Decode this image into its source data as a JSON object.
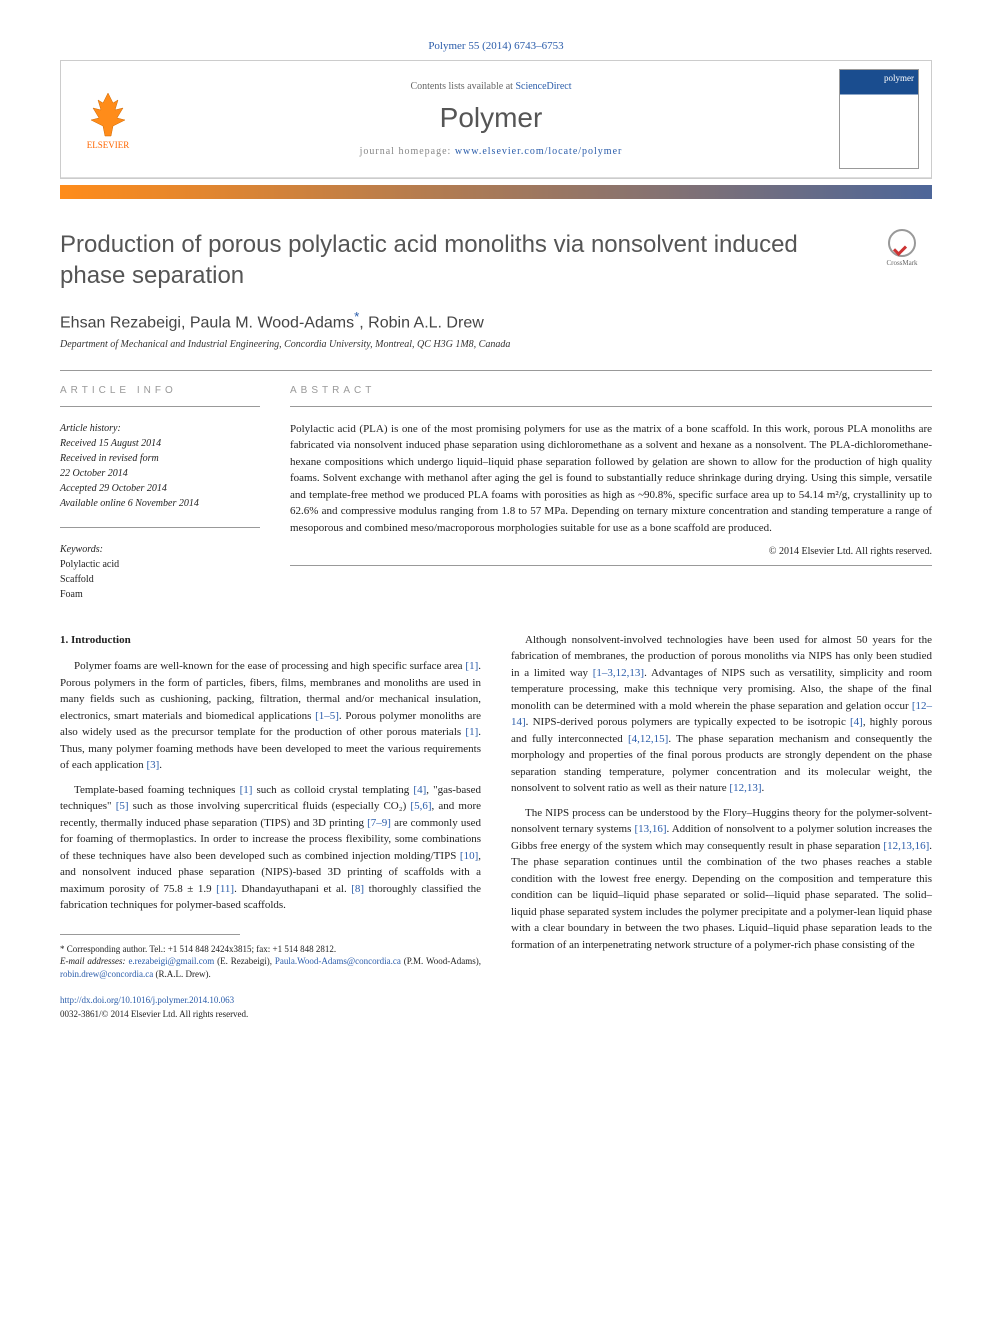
{
  "journal_ref": "Polymer 55 (2014) 6743–6753",
  "header": {
    "contents_prefix": "Contents lists available at ",
    "contents_link": "ScienceDirect",
    "journal_name": "Polymer",
    "homepage_prefix": "journal homepage: ",
    "homepage_url": "www.elsevier.com/locate/polymer",
    "publisher": "ELSEVIER",
    "cover_label": "polymer"
  },
  "crossmark_label": "CrossMark",
  "article": {
    "title": "Production of porous polylactic acid monoliths via nonsolvent induced phase separation",
    "authors_html": "Ehsan Rezabeigi, Paula M. Wood-Adams<sup class='corr'>*</sup>, Robin A.L. Drew",
    "affiliation": "Department of Mechanical and Industrial Engineering, Concordia University, Montreal, QC H3G 1M8, Canada"
  },
  "info": {
    "label": "ARTICLE INFO",
    "history_label": "Article history:",
    "history": [
      "Received 15 August 2014",
      "Received in revised form",
      "22 October 2014",
      "Accepted 29 October 2014",
      "Available online 6 November 2014"
    ],
    "keywords_label": "Keywords:",
    "keywords": [
      "Polylactic acid",
      "Scaffold",
      "Foam"
    ]
  },
  "abstract": {
    "label": "ABSTRACT",
    "text": "Polylactic acid (PLA) is one of the most promising polymers for use as the matrix of a bone scaffold. In this work, porous PLA monoliths are fabricated via nonsolvent induced phase separation using dichloromethane as a solvent and hexane as a nonsolvent. The PLA-dichloromethane-hexane compositions which undergo liquid–liquid phase separation followed by gelation are shown to allow for the production of high quality foams. Solvent exchange with methanol after aging the gel is found to substantially reduce shrinkage during drying. Using this simple, versatile and template-free method we produced PLA foams with porosities as high as ~90.8%, specific surface area up to 54.14 m²/g, crystallinity up to 62.6% and compressive modulus ranging from 1.8 to 57 MPa. Depending on ternary mixture concentration and standing temperature a range of mesoporous and combined meso/macroporous morphologies suitable for use as a bone scaffold are produced.",
    "copyright": "© 2014 Elsevier Ltd. All rights reserved."
  },
  "body": {
    "intro_heading": "1. Introduction",
    "left": [
      "Polymer foams are well-known for the ease of processing and high specific surface area [1]. Porous polymers in the form of particles, fibers, films, membranes and monoliths are used in many fields such as cushioning, packing, filtration, thermal and/or mechanical insulation, electronics, smart materials and biomedical applications [1–5]. Porous polymer monoliths are also widely used as the precursor template for the production of other porous materials [1]. Thus, many polymer foaming methods have been developed to meet the various requirements of each application [3].",
      "Template-based foaming techniques [1] such as colloid crystal templating [4], \"gas-based techniques\" [5] such as those involving supercritical fluids (especially CO₂) [5,6], and more recently, thermally induced phase separation (TIPS) and 3D printing [7–9] are commonly used for foaming of thermoplastics. In order to increase the process flexibility, some combinations of these techniques have also been developed such as combined injection molding/TIPS [10], and nonsolvent induced phase separation (NIPS)-based 3D printing of scaffolds with a maximum porosity of 75.8 ± 1.9 [11]. Dhandayuthapani et al. [8] thoroughly classified the fabrication techniques for polymer-based scaffolds."
    ],
    "right": [
      "Although nonsolvent-involved technologies have been used for almost 50 years for the fabrication of membranes, the production of porous monoliths via NIPS has only been studied in a limited way [1–3,12,13]. Advantages of NIPS such as versatility, simplicity and room temperature processing, make this technique very promising. Also, the shape of the final monolith can be determined with a mold wherein the phase separation and gelation occur [12–14]. NIPS-derived porous polymers are typically expected to be isotropic [4], highly porous and fully interconnected [4,12,15]. The phase separation mechanism and consequently the morphology and properties of the final porous products are strongly dependent on the phase separation standing temperature, polymer concentration and its molecular weight, the nonsolvent to solvent ratio as well as their nature [12,13].",
      "The NIPS process can be understood by the Flory–Huggins theory for the polymer-solvent-nonsolvent ternary systems [13,16]. Addition of nonsolvent to a polymer solution increases the Gibbs free energy of the system which may consequently result in phase separation [12,13,16]. The phase separation continues until the combination of the two phases reaches a stable condition with the lowest free energy. Depending on the composition and temperature this condition can be liquid–liquid phase separated or solid-–liquid phase separated. The solid–liquid phase separated system includes the polymer precipitate and a polymer-lean liquid phase with a clear boundary in between the two phases. Liquid–liquid phase separation leads to the formation of an interpenetrating network structure of a polymer-rich phase consisting of the"
    ]
  },
  "footnote": {
    "corr_label": "* Corresponding author. Tel.: +1 514 848 2424x3815; fax: +1 514 848 2812.",
    "email_label": "E-mail addresses:",
    "emails": [
      {
        "addr": "e.rezabeigi@gmail.com",
        "who": "(E. Rezabeigi)"
      },
      {
        "addr": "Paula.Wood-Adams@concordia.ca",
        "who": "(P.M. Wood-Adams)"
      },
      {
        "addr": "robin.drew@concordia.ca",
        "who": "(R.A.L. Drew)."
      }
    ]
  },
  "doi": {
    "url": "http://dx.doi.org/10.1016/j.polymer.2014.10.063",
    "issn_line": "0032-3861/© 2014 Elsevier Ltd. All rights reserved."
  },
  "colors": {
    "link": "#2a5caa",
    "orange": "#ff8c1a",
    "bar_end": "#4d6699"
  }
}
